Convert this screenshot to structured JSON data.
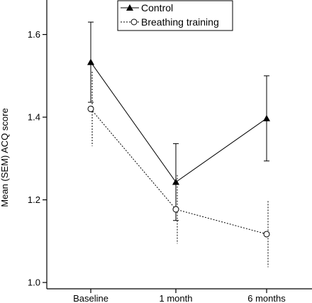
{
  "chart_data": {
    "type": "line",
    "title": "",
    "xlabel": "",
    "ylabel": "Mean (SEM) ACQ score",
    "categories": [
      "Baseline",
      "1 month",
      "6 months"
    ],
    "ylim": [
      1.0,
      1.65
    ],
    "yticks": [
      "1.0",
      "1.2",
      "1.4",
      "1.6"
    ],
    "grid": false,
    "legend_position": "top-center",
    "series": [
      {
        "name": "Control",
        "values": [
          1.533,
          1.243,
          1.397
        ],
        "sem": [
          0.097,
          0.093,
          0.103
        ],
        "marker": "filled-triangle",
        "line_style": "solid",
        "color": "#000000"
      },
      {
        "name": "Breathing training",
        "values": [
          1.42,
          1.177,
          1.117
        ],
        "sem": [
          0.09,
          0.083,
          0.08
        ],
        "marker": "open-circle",
        "line_style": "dotted",
        "color": "#000000"
      }
    ]
  }
}
